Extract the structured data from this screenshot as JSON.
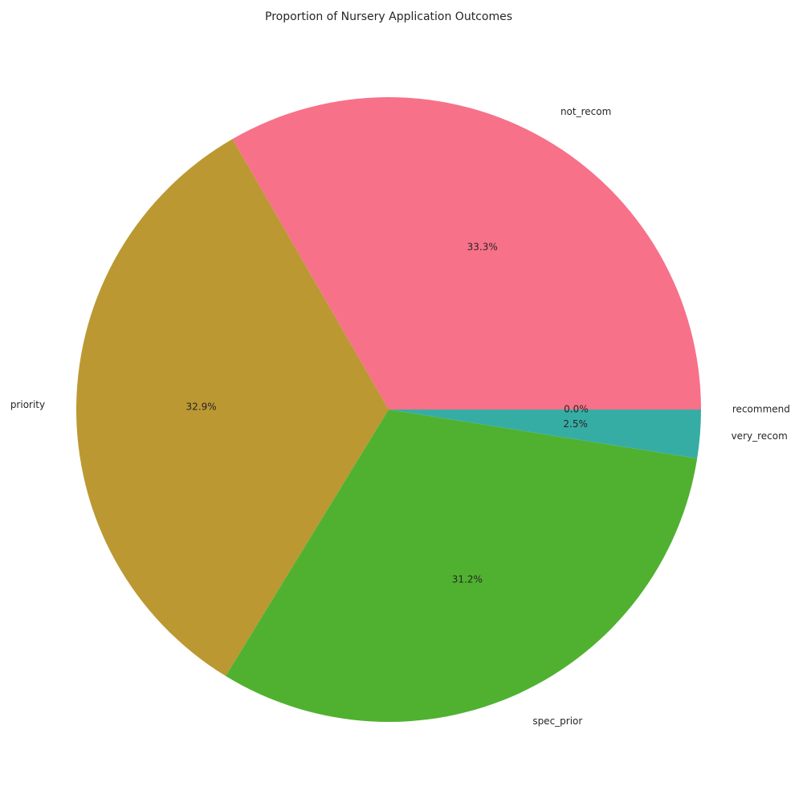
{
  "chart_data": {
    "type": "pie",
    "title": "Proportion of Nursery Application Outcomes",
    "start_angle_deg": 0,
    "direction": "counterclockwise",
    "slices": [
      {
        "label": "not_recom",
        "value": 33.3,
        "pct_label": "33.3%",
        "color": "#f77189"
      },
      {
        "label": "priority",
        "value": 32.9,
        "pct_label": "32.9%",
        "color": "#bb9832"
      },
      {
        "label": "spec_prior",
        "value": 31.2,
        "pct_label": "31.2%",
        "color": "#50b131"
      },
      {
        "label": "very_recom",
        "value": 2.5,
        "pct_label": "2.5%",
        "color": "#36ada4"
      },
      {
        "label": "recommend",
        "value": 0.0,
        "pct_label": "0.0%",
        "color": "#3ba3ec"
      }
    ]
  }
}
